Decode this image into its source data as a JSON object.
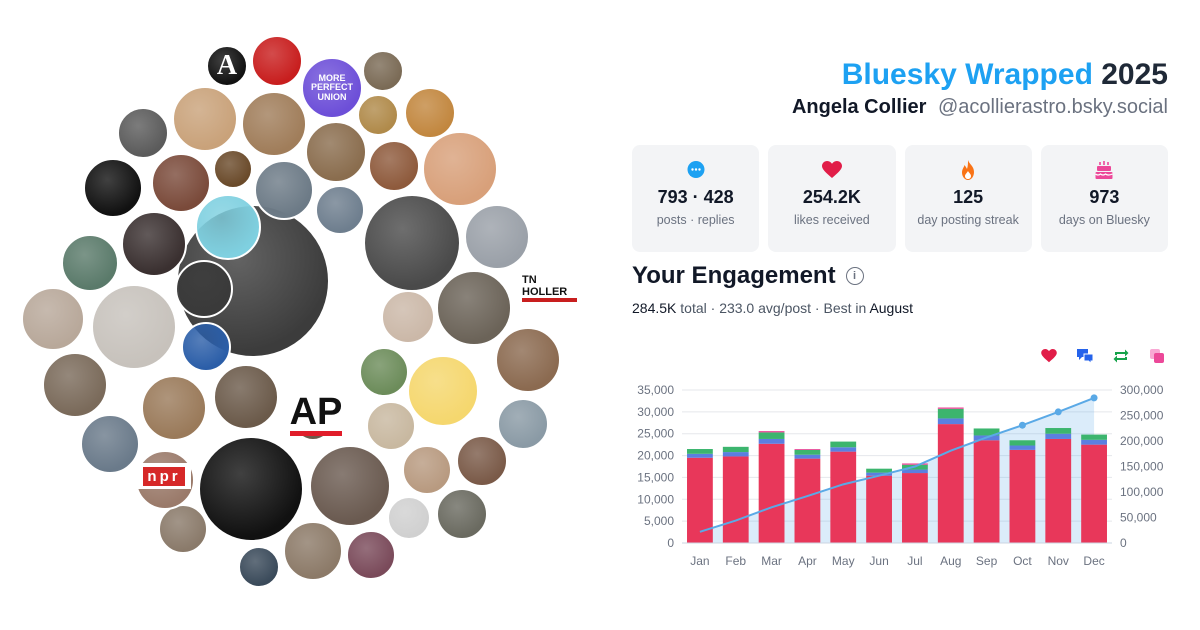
{
  "header": {
    "brand": "Bluesky Wrapped",
    "year": "2025",
    "name": "Angela Collier",
    "handle": "@acollierastro.bsky.social"
  },
  "stats": [
    {
      "icon": "speech-bubble-icon",
      "value": "793 · 428",
      "label": "posts · replies",
      "color": "#1da1f2"
    },
    {
      "icon": "heart-icon",
      "value": "254.2K",
      "label": "likes received",
      "color": "#e11d48"
    },
    {
      "icon": "flame-icon",
      "value": "125",
      "label": "day posting streak",
      "color": "#f97316"
    },
    {
      "icon": "cake-icon",
      "value": "973",
      "label": "days on Bluesky",
      "color": "#ec4899"
    }
  ],
  "engagement": {
    "title": "Your Engagement",
    "total": "284.5K",
    "total_word": "total",
    "avg": "233.0 avg/post",
    "best_prefix": "Best in",
    "best_month": "August"
  },
  "legend": [
    {
      "icon": "heart-icon",
      "color": "#e11d48"
    },
    {
      "icon": "replies-icon",
      "color": "#2563eb"
    },
    {
      "icon": "repost-icon",
      "color": "#16a34a"
    },
    {
      "icon": "quote-icon",
      "color": "#ec4899"
    }
  ],
  "avatars": [
    {
      "label": "A",
      "bg": "#111111",
      "fg": "#ffffff"
    },
    {
      "label": "",
      "bg": "#c81e1e",
      "fg": "#ffffff"
    },
    {
      "label": "MORE PERFECT UNION",
      "bg": "#6d4fd8",
      "fg": "#ffffff"
    },
    {
      "label": "",
      "bg": "#7a6a55",
      "fg": "#ffffff"
    },
    {
      "label": "",
      "bg": "#c9a27a",
      "fg": "#ffffff"
    },
    {
      "label": "",
      "bg": "#a07d5a",
      "fg": "#ffffff"
    },
    {
      "label": "",
      "bg": "#8a6d4e",
      "fg": "#ffffff"
    },
    {
      "label": "",
      "bg": "#c2873f",
      "fg": "#ffffff"
    },
    {
      "label": "",
      "bg": "#5b5b5b",
      "fg": "#ffffff"
    },
    {
      "label": "",
      "bg": "#b08a4a",
      "fg": "#ffffff"
    },
    {
      "label": "",
      "bg": "#3c3c3c",
      "fg": "#ffffff"
    },
    {
      "label": "",
      "bg": "#8e5a3c",
      "fg": "#ffffff"
    },
    {
      "label": "",
      "bg": "#d8a07a",
      "fg": "#ffffff"
    },
    {
      "label": "",
      "bg": "#111111",
      "fg": "#ffffff"
    },
    {
      "label": "",
      "bg": "#7a4a3a",
      "fg": "#ffffff"
    },
    {
      "label": "",
      "bg": "#6a4a2a",
      "fg": "#ffffff"
    },
    {
      "label": "",
      "bg": "#6c7a86",
      "fg": "#ffffff"
    },
    {
      "label": "",
      "bg": "#6e7e8e",
      "fg": "#ffffff"
    },
    {
      "label": "",
      "bg": "#7fd0e0",
      "fg": "#ffffff"
    },
    {
      "label": "",
      "bg": "#4a4a4a",
      "fg": "#ffffff"
    },
    {
      "label": "",
      "bg": "#9aa0a8",
      "fg": "#ffffff"
    },
    {
      "label": "",
      "bg": "#3a3030",
      "fg": "#ffffff"
    },
    {
      "label": "",
      "bg": "#5a7a6a",
      "fg": "#ffffff"
    },
    {
      "label": "",
      "bg": "#3a3a3a",
      "fg": "#ffffff"
    },
    {
      "label": "",
      "bg": "#6b6358",
      "fg": "#ffffff"
    },
    {
      "label": "",
      "bg": "#b8a89a",
      "fg": "#ffffff"
    },
    {
      "label": "",
      "bg": "#c7c2bc",
      "fg": "#ffffff"
    },
    {
      "label": "",
      "bg": "#2b5ea8",
      "fg": "#ffffff"
    },
    {
      "label": "",
      "bg": "#cbb8a8",
      "fg": "#ffffff"
    },
    {
      "label": "",
      "bg": "#8b6a50",
      "fg": "#ffffff"
    },
    {
      "label": "",
      "bg": "#6c8c5a",
      "fg": "#ffffff"
    },
    {
      "label": "",
      "bg": "#9a7a5a",
      "fg": "#ffffff"
    },
    {
      "label": "",
      "bg": "#6b5a4a",
      "fg": "#ffffff"
    },
    {
      "label": "",
      "bg": "#f5d76e",
      "fg": "#ffffff"
    },
    {
      "label": "",
      "bg": "#6a7a8a",
      "fg": "#ffffff"
    },
    {
      "label": "",
      "bg": "#c8b8a0",
      "fg": "#ffffff"
    },
    {
      "label": "",
      "bg": "#8a9aa5",
      "fg": "#ffffff"
    },
    {
      "label": "",
      "bg": "#111111",
      "fg": "#ffffff"
    },
    {
      "label": "",
      "bg": "#6a5a50",
      "fg": "#ffffff"
    },
    {
      "label": "",
      "bg": "#b89a80",
      "fg": "#ffffff"
    },
    {
      "label": "",
      "bg": "#7a5a48",
      "fg": "#ffffff"
    },
    {
      "label": "",
      "bg": "#8a7a6a",
      "fg": "#ffffff"
    },
    {
      "label": "",
      "bg": "#d0d0d0",
      "fg": "#ffffff"
    },
    {
      "label": "",
      "bg": "#6a6a60",
      "fg": "#ffffff"
    },
    {
      "label": "",
      "bg": "#8c7a68",
      "fg": "#ffffff"
    },
    {
      "label": "",
      "bg": "#7a4a5a",
      "fg": "#ffffff"
    },
    {
      "label": "",
      "bg": "#3a4a5a",
      "fg": "#ffffff"
    },
    {
      "label": "",
      "bg": "#7a6a5a",
      "fg": "#ffffff"
    },
    {
      "label": "",
      "bg": "#9a7a6a",
      "fg": "#ffffff"
    },
    {
      "label": "",
      "bg": "#6a5a4a",
      "fg": "#ffffff"
    }
  ],
  "logos": [
    {
      "label": "TN HOLLER",
      "name": "tn-holler-logo"
    },
    {
      "label": "AP",
      "name": "ap-logo"
    },
    {
      "label": "npr",
      "name": "npr-logo"
    }
  ],
  "chart_data": {
    "type": "bar",
    "stacked": true,
    "categories": [
      "Jan",
      "Feb",
      "Mar",
      "Apr",
      "May",
      "Jun",
      "Jul",
      "Aug",
      "Sep",
      "Oct",
      "Nov",
      "Dec"
    ],
    "series": [
      {
        "values": [
          19500,
          19800,
          22700,
          19300,
          20900,
          15400,
          16000,
          27200,
          23500,
          21300,
          23800,
          22500
        ],
        "color": "#e8375a"
      },
      {
        "values": [
          900,
          1000,
          1100,
          900,
          1000,
          700,
          800,
          1300,
          1100,
          1000,
          1200,
          1100
        ],
        "color": "#5b7fe0"
      },
      {
        "values": [
          1100,
          1200,
          1500,
          1100,
          1300,
          900,
          1100,
          2200,
          1600,
          1200,
          1300,
          1200
        ],
        "color": "#3cb56e"
      },
      {
        "values": [
          0,
          0,
          300,
          200,
          0,
          0,
          300,
          300,
          0,
          0,
          0,
          0
        ],
        "color": "#ec4899"
      }
    ],
    "cumulative_line": {
      "values": [
        22000,
        44000,
        70000,
        92000,
        115000,
        132000,
        150000,
        181000,
        207000,
        231000,
        257000,
        284500
      ],
      "color": "#5aa9e6"
    },
    "ylim": [
      0,
      35000
    ],
    "yticks": [
      0,
      5000,
      10000,
      15000,
      20000,
      25000,
      30000,
      35000
    ],
    "ytick_labels": [
      "0",
      "5,000",
      "10,000",
      "15,000",
      "20,000",
      "25,000",
      "30,000",
      "35,000"
    ],
    "y2lim": [
      0,
      300000
    ],
    "y2ticks": [
      0,
      50000,
      100000,
      150000,
      200000,
      250000,
      300000
    ],
    "y2tick_labels": [
      "0",
      "50,000",
      "100,000",
      "150,000",
      "200,000",
      "250,000",
      "300,000"
    ],
    "grid": true
  }
}
